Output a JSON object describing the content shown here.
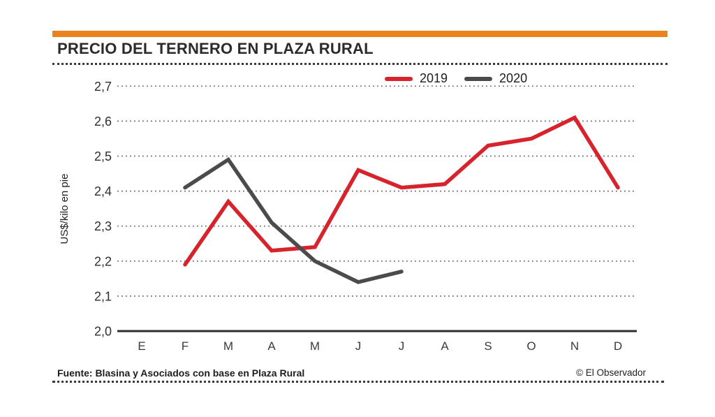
{
  "page": {
    "title": "PRECIO DEL TERNERO EN PLAZA RURAL",
    "source": "Fuente: Blasina y Asociados con base en Plaza Rural",
    "credit": "© El Observador"
  },
  "colors": {
    "accent_bar": "#e8831e",
    "series_2019": "#d7242c",
    "series_2020": "#4d4a4b",
    "gridline": "#6a6a6a",
    "axis_line": "#2d2d2d",
    "tick_text": "#2f2f2f"
  },
  "chart_data": {
    "type": "line",
    "title": "PRECIO DEL TERNERO EN PLAZA RURAL",
    "xlabel": "",
    "ylabel": "US$/kilo en pie",
    "ylim": [
      2.0,
      2.7
    ],
    "grid": "horizontal-dotted",
    "legend_position": "top-right",
    "categories": [
      "E",
      "F",
      "M",
      "A",
      "M",
      "J",
      "J",
      "A",
      "S",
      "O",
      "N",
      "D"
    ],
    "yticks": [
      {
        "value": 2.0,
        "label": "2,0"
      },
      {
        "value": 2.1,
        "label": "2,1"
      },
      {
        "value": 2.2,
        "label": "2,2"
      },
      {
        "value": 2.3,
        "label": "2,3"
      },
      {
        "value": 2.4,
        "label": "2,4"
      },
      {
        "value": 2.5,
        "label": "2,5"
      },
      {
        "value": 2.6,
        "label": "2,6"
      },
      {
        "value": 2.7,
        "label": "2,7"
      }
    ],
    "series": [
      {
        "name": "2019",
        "color": "#d7242c",
        "values": [
          null,
          2.19,
          2.37,
          2.23,
          2.24,
          2.46,
          2.41,
          2.42,
          2.53,
          2.55,
          2.61,
          2.41
        ]
      },
      {
        "name": "2020",
        "color": "#4d4a4b",
        "values": [
          null,
          2.41,
          2.49,
          2.31,
          2.2,
          2.14,
          2.17,
          null,
          null,
          null,
          null,
          null
        ]
      }
    ]
  }
}
